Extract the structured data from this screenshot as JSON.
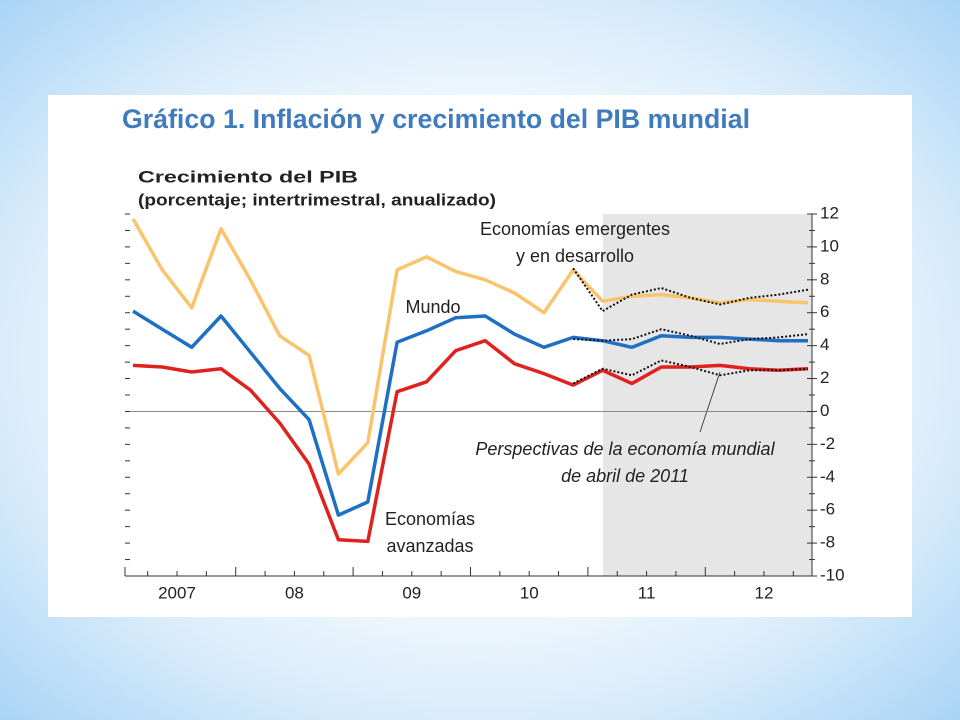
{
  "chart_data": {
    "type": "line",
    "title": "Gráfico 1. Inflación y crecimiento del PIB mundial",
    "y_label": [
      "Crecimiento del PIB",
      "(porcentaje; intertrimestral, anualizado)"
    ],
    "categories": [
      null,
      "2007",
      null,
      null,
      null,
      "08",
      null,
      null,
      null,
      "09",
      null,
      null,
      null,
      "10",
      null,
      null,
      null,
      "11",
      null,
      null,
      null,
      "12",
      null,
      null
    ],
    "series": [
      {
        "name": "Economías emergentes y en desarrollo",
        "color": "#f9c46b",
        "values": [
          11.7,
          8.6,
          6.3,
          11.1,
          8,
          4.6,
          3.4,
          -3.8,
          -1.9,
          8.6,
          9.4,
          8.5,
          8,
          7.2,
          6,
          8.6,
          6.7,
          7,
          7.1,
          6.9,
          6.6,
          6.8,
          6.7,
          6.6
        ]
      },
      {
        "name": "Mundo",
        "color": "#1f6fc4",
        "values": [
          6.1,
          5,
          3.9,
          5.8,
          3.6,
          1.4,
          -0.5,
          -6.3,
          -5.5,
          4.2,
          4.9,
          5.7,
          5.8,
          4.7,
          3.9,
          4.5,
          4.3,
          3.9,
          4.6,
          4.5,
          4.5,
          4.4,
          4.3,
          4.3
        ]
      },
      {
        "name": "Economías avanzadas",
        "color": "#e0221e",
        "values": [
          2.8,
          2.7,
          2.4,
          2.6,
          1.3,
          -0.7,
          -3.2,
          -7.8,
          -7.9,
          1.2,
          1.8,
          3.7,
          4.3,
          2.9,
          2.3,
          1.6,
          2.5,
          1.7,
          2.7,
          2.7,
          2.8,
          2.6,
          2.5,
          2.6
        ]
      },
      {
        "color": "#111111",
        "dash": true,
        "values": [
          null,
          null,
          null,
          null,
          null,
          null,
          null,
          null,
          null,
          null,
          null,
          null,
          null,
          null,
          null,
          8.7,
          6.1,
          7.1,
          7.5,
          6.9,
          6.5,
          6.9,
          7.1,
          7.4
        ]
      },
      {
        "color": "#111111",
        "dash": true,
        "values": [
          null,
          null,
          null,
          null,
          null,
          null,
          null,
          null,
          null,
          null,
          null,
          null,
          null,
          null,
          null,
          4.4,
          4.3,
          4.4,
          5,
          4.6,
          4.1,
          4.4,
          4.5,
          4.7
        ]
      },
      {
        "color": "#111111",
        "dash": true,
        "values": [
          null,
          null,
          null,
          null,
          null,
          null,
          null,
          null,
          null,
          null,
          null,
          null,
          null,
          null,
          null,
          1.7,
          2.6,
          2.2,
          3.1,
          2.7,
          2.2,
          2.5,
          2.5,
          2.6
        ]
      }
    ],
    "ylim": [
      -10,
      12
    ],
    "yticks": [
      -10,
      -8,
      -6,
      -4,
      -2,
      0,
      2,
      4,
      6,
      8,
      10,
      12
    ],
    "grid": false,
    "annotations": [
      {
        "lines": [
          "Economías emergentes",
          "y en desarrollo"
        ]
      },
      {
        "lines": [
          "Mundo"
        ]
      },
      {
        "lines": [
          "Economías",
          "avanzadas"
        ]
      },
      {
        "lines": [
          "Perspectivas de la economía mundial",
          "de abril de 2011"
        ],
        "italic": true
      }
    ]
  }
}
